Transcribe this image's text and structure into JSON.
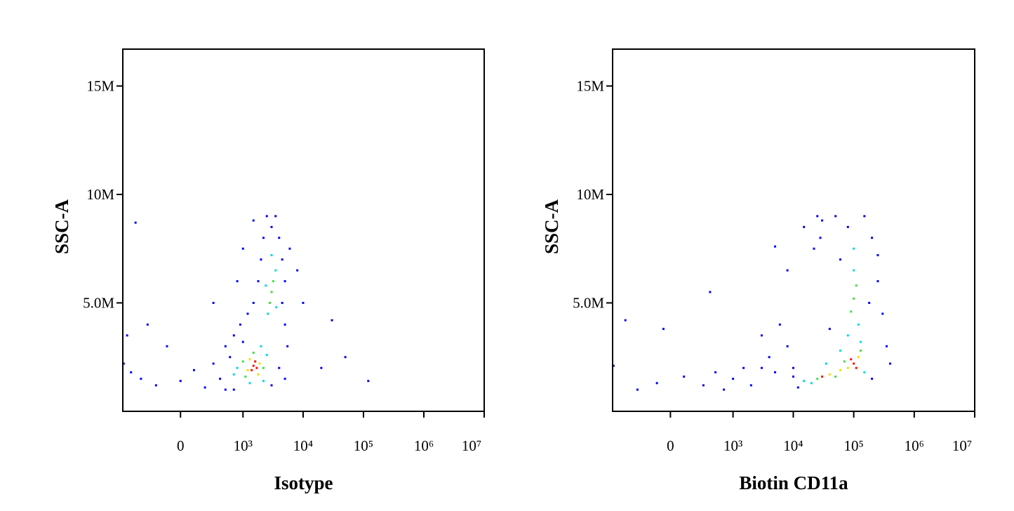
{
  "chart_data": [
    {
      "type": "scatter",
      "x_label": "Isotype",
      "y_label": "SSC-A",
      "xscale": "asinh",
      "xlim": [
        -830,
        10000000
      ],
      "ylim": [
        0,
        16700000
      ],
      "xticks": [
        0,
        {
          "value": 1000,
          "label": "10³"
        },
        {
          "value": 10000,
          "label": "10⁴"
        },
        {
          "value": 100000,
          "label": "10⁵"
        },
        {
          "value": 1000000,
          "label": "10⁶"
        },
        {
          "value": 10000000,
          "label": "10⁷"
        }
      ],
      "yticks": [
        {
          "value": 5000000,
          "label": "5.0M"
        },
        {
          "value": 10000000,
          "label": "10M"
        },
        {
          "value": 15000000,
          "label": "15M"
        }
      ],
      "series": [
        {
          "color": "#0000ff",
          "x": [
            -600,
            -400,
            -200,
            0,
            100,
            200,
            300,
            400,
            500,
            500,
            600,
            700,
            900,
            1000,
            1200,
            1500,
            1800,
            2000,
            2200,
            2500,
            3000,
            3500,
            4000,
            4500,
            5000,
            4500,
            5000,
            5500,
            4000,
            5000,
            3000,
            6000,
            8000,
            10000,
            20000,
            30000,
            50000,
            120000,
            -500,
            -700,
            -300,
            -100,
            300,
            800,
            1000,
            1500,
            700,
            -800
          ],
          "values": [
            1800000,
            1500000,
            1200000,
            1400000,
            1900000,
            1100000,
            2200000,
            1500000,
            1000000,
            3000000,
            2500000,
            3500000,
            4000000,
            3200000,
            4500000,
            5000000,
            6000000,
            7000000,
            8000000,
            9000000,
            8500000,
            9000000,
            8000000,
            7000000,
            6000000,
            5000000,
            4000000,
            3000000,
            2000000,
            1500000,
            1200000,
            7500000,
            6500000,
            5000000,
            2000000,
            4200000,
            2500000,
            1400000,
            8700000,
            3500000,
            4000000,
            3000000,
            5000000,
            6000000,
            7500000,
            8800000,
            1000000,
            2200000
          ]
        },
        {
          "color": "#00d8e8",
          "x": [
            800,
            2500,
            700,
            2000,
            2600,
            3500,
            3000,
            2400,
            3600,
            1300,
            2200
          ],
          "values": [
            2000000,
            2600000,
            1700000,
            3000000,
            4500000,
            6500000,
            7200000,
            5800000,
            4800000,
            1300000,
            1400000
          ]
        },
        {
          "color": "#3ee03e",
          "x": [
            1000,
            2200,
            1500,
            3000,
            3200,
            2800,
            1100
          ],
          "values": [
            2300000,
            2000000,
            2700000,
            5500000,
            6000000,
            5000000,
            1600000
          ]
        },
        {
          "color": "#f0e000",
          "x": [
            1300,
            1900,
            1200,
            1800
          ],
          "values": [
            2400000,
            2200000,
            1900000,
            1700000
          ]
        },
        {
          "color": "#ff1010",
          "x": [
            1500,
            1600,
            1400,
            1700
          ],
          "values": [
            2100000,
            2300000,
            1900000,
            2000000
          ]
        }
      ]
    },
    {
      "type": "scatter",
      "x_label": "Biotin CD11a",
      "y_label": "SSC-A",
      "xscale": "asinh",
      "xlim": [
        -830,
        10000000
      ],
      "ylim": [
        0,
        16700000
      ],
      "xticks": [
        0,
        {
          "value": 1000,
          "label": "10³"
        },
        {
          "value": 10000,
          "label": "10⁴"
        },
        {
          "value": 100000,
          "label": "10⁵"
        },
        {
          "value": 1000000,
          "label": "10⁶"
        },
        {
          "value": 10000000,
          "label": "10⁷"
        }
      ],
      "yticks": [
        {
          "value": 5000000,
          "label": "5.0M"
        },
        {
          "value": 10000000,
          "label": "10M"
        },
        {
          "value": 15000000,
          "label": "15M"
        }
      ],
      "series": [
        {
          "color": "#0000ff",
          "x": [
            -800,
            -500,
            -300,
            -100,
            100,
            300,
            500,
            700,
            1000,
            1500,
            2000,
            3000,
            4000,
            5000,
            6000,
            8000,
            10000,
            12000,
            8000,
            15000,
            25000,
            28000,
            22000,
            30000,
            40000,
            60000,
            150000,
            200000,
            250000,
            300000,
            350000,
            400000,
            200000,
            50000,
            80000,
            180000,
            5000,
            400,
            -50,
            10000,
            250000,
            3000
          ],
          "values": [
            2100000,
            4200000,
            1000000,
            1300000,
            1600000,
            1200000,
            1800000,
            1000000,
            1500000,
            2000000,
            1200000,
            3500000,
            2500000,
            1800000,
            4000000,
            3000000,
            2000000,
            1100000,
            6500000,
            8500000,
            9000000,
            8000000,
            7500000,
            8800000,
            3800000,
            7000000,
            9000000,
            8000000,
            6000000,
            4500000,
            3000000,
            2200000,
            1500000,
            9000000,
            8500000,
            5000000,
            7600000,
            5500000,
            3800000,
            1600000,
            7200000,
            2000000
          ]
        },
        {
          "color": "#00d8e8",
          "x": [
            100000,
            120000,
            80000,
            20000,
            150000,
            100000,
            130000,
            60000,
            35000,
            15000
          ],
          "values": [
            6500000,
            4000000,
            3500000,
            1300000,
            1800000,
            7500000,
            3200000,
            2800000,
            2200000,
            1400000
          ]
        },
        {
          "color": "#3ee03e",
          "x": [
            100000,
            110000,
            90000,
            50000,
            130000,
            25000,
            70000
          ],
          "values": [
            5200000,
            5800000,
            4600000,
            1600000,
            2800000,
            1500000,
            2300000
          ]
        },
        {
          "color": "#f0e000",
          "x": [
            80000,
            120000,
            40000,
            60000
          ],
          "values": [
            2000000,
            2500000,
            1700000,
            1900000
          ]
        },
        {
          "color": "#ff1010",
          "x": [
            100000,
            110000,
            90000,
            30000
          ],
          "values": [
            2200000,
            2000000,
            2400000,
            1600000
          ]
        }
      ]
    }
  ]
}
